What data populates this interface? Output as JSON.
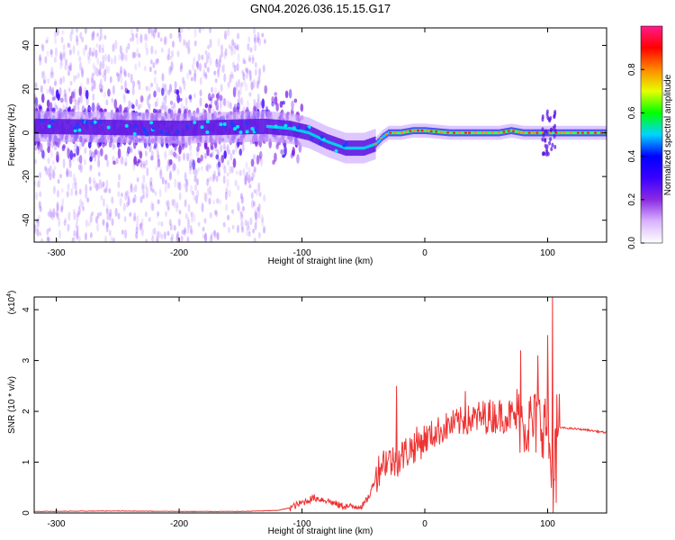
{
  "title": "GN04.2026.036.15.15.G17",
  "chart_data": [
    {
      "type": "heatmap",
      "xlabel": "Height of straight line (km)",
      "ylabel": "Frequency (Hz)",
      "xlim": [
        -318,
        148
      ],
      "ylim": [
        -50,
        48
      ],
      "xticks": [
        -300,
        -200,
        -100,
        0,
        100
      ],
      "yticks": [
        -40,
        -20,
        0,
        20,
        40
      ],
      "colorbar": {
        "label": "Normalized spectral amplitude",
        "range": [
          0,
          1
        ],
        "ticks": [
          "0.0",
          "0.2",
          "0.4",
          "0.6",
          "0.8"
        ],
        "tick_values": [
          0,
          0.2,
          0.4,
          0.6,
          0.8
        ],
        "colormap": [
          "#ffffff",
          "#d9b3ff",
          "#8a2be2",
          "#3a00ff",
          "#0000ff",
          "#00d5ff",
          "#00ff00",
          "#e6ff00",
          "#ff8800",
          "#ff0000",
          "#ff1a8c"
        ]
      },
      "ridge": {
        "x": [
          -318,
          -200,
          -130,
          -110,
          -95,
          -80,
          -65,
          -50,
          -40,
          -35,
          -30,
          -20,
          -10,
          0,
          20,
          40,
          60,
          70,
          80,
          100,
          105,
          148
        ],
        "y": [
          3,
          2,
          3,
          2,
          0,
          -4,
          -7,
          -7,
          -5,
          -2,
          0,
          0,
          1,
          1,
          0,
          0,
          0,
          1,
          0,
          0,
          0,
          0
        ]
      }
    },
    {
      "type": "line",
      "xlabel": "Height of straight line (km)",
      "ylabel": "SNR (10 * v/v)",
      "y_multiplier": "(x10",
      "y_exponent": "4",
      "y_multiplier_close": ")",
      "xlim": [
        -318,
        148
      ],
      "ylim": [
        0,
        4.25
      ],
      "xticks": [
        -300,
        -200,
        -100,
        0,
        100
      ],
      "yticks": [
        0,
        1,
        2,
        3,
        4
      ],
      "color": "#ee3333",
      "series": [
        {
          "x": [
            -318,
            -250,
            -200,
            -150,
            -120,
            -110,
            -100,
            -90,
            -80,
            -70,
            -60,
            -50,
            -45,
            -40,
            -35,
            -30,
            -25,
            -20,
            -10,
            0,
            10,
            20,
            30,
            40,
            50,
            60,
            70,
            75,
            80,
            85,
            90,
            95,
            100,
            103,
            105,
            107,
            110,
            120,
            130,
            148
          ],
          "y": [
            0.03,
            0.04,
            0.03,
            0.03,
            0.05,
            0.1,
            0.2,
            0.3,
            0.25,
            0.15,
            0.12,
            0.15,
            0.35,
            0.7,
            1.0,
            1.05,
            1.0,
            1.1,
            1.3,
            1.45,
            1.6,
            1.72,
            1.8,
            1.85,
            1.9,
            1.92,
            1.92,
            1.85,
            1.8,
            1.75,
            1.75,
            1.8,
            1.7,
            0.8,
            0.5,
            1.72,
            1.68,
            1.66,
            1.64,
            1.58
          ]
        }
      ],
      "spikes": [
        {
          "x": -23,
          "y": 2.5
        },
        {
          "x": 33,
          "y": 2.4
        },
        {
          "x": 78,
          "y": 3.2
        },
        {
          "x": 92,
          "y": 3.1
        },
        {
          "x": 100,
          "y": 3.5
        },
        {
          "x": 104,
          "y": 4.25
        },
        {
          "x": 107,
          "y": 0.2
        }
      ]
    }
  ]
}
